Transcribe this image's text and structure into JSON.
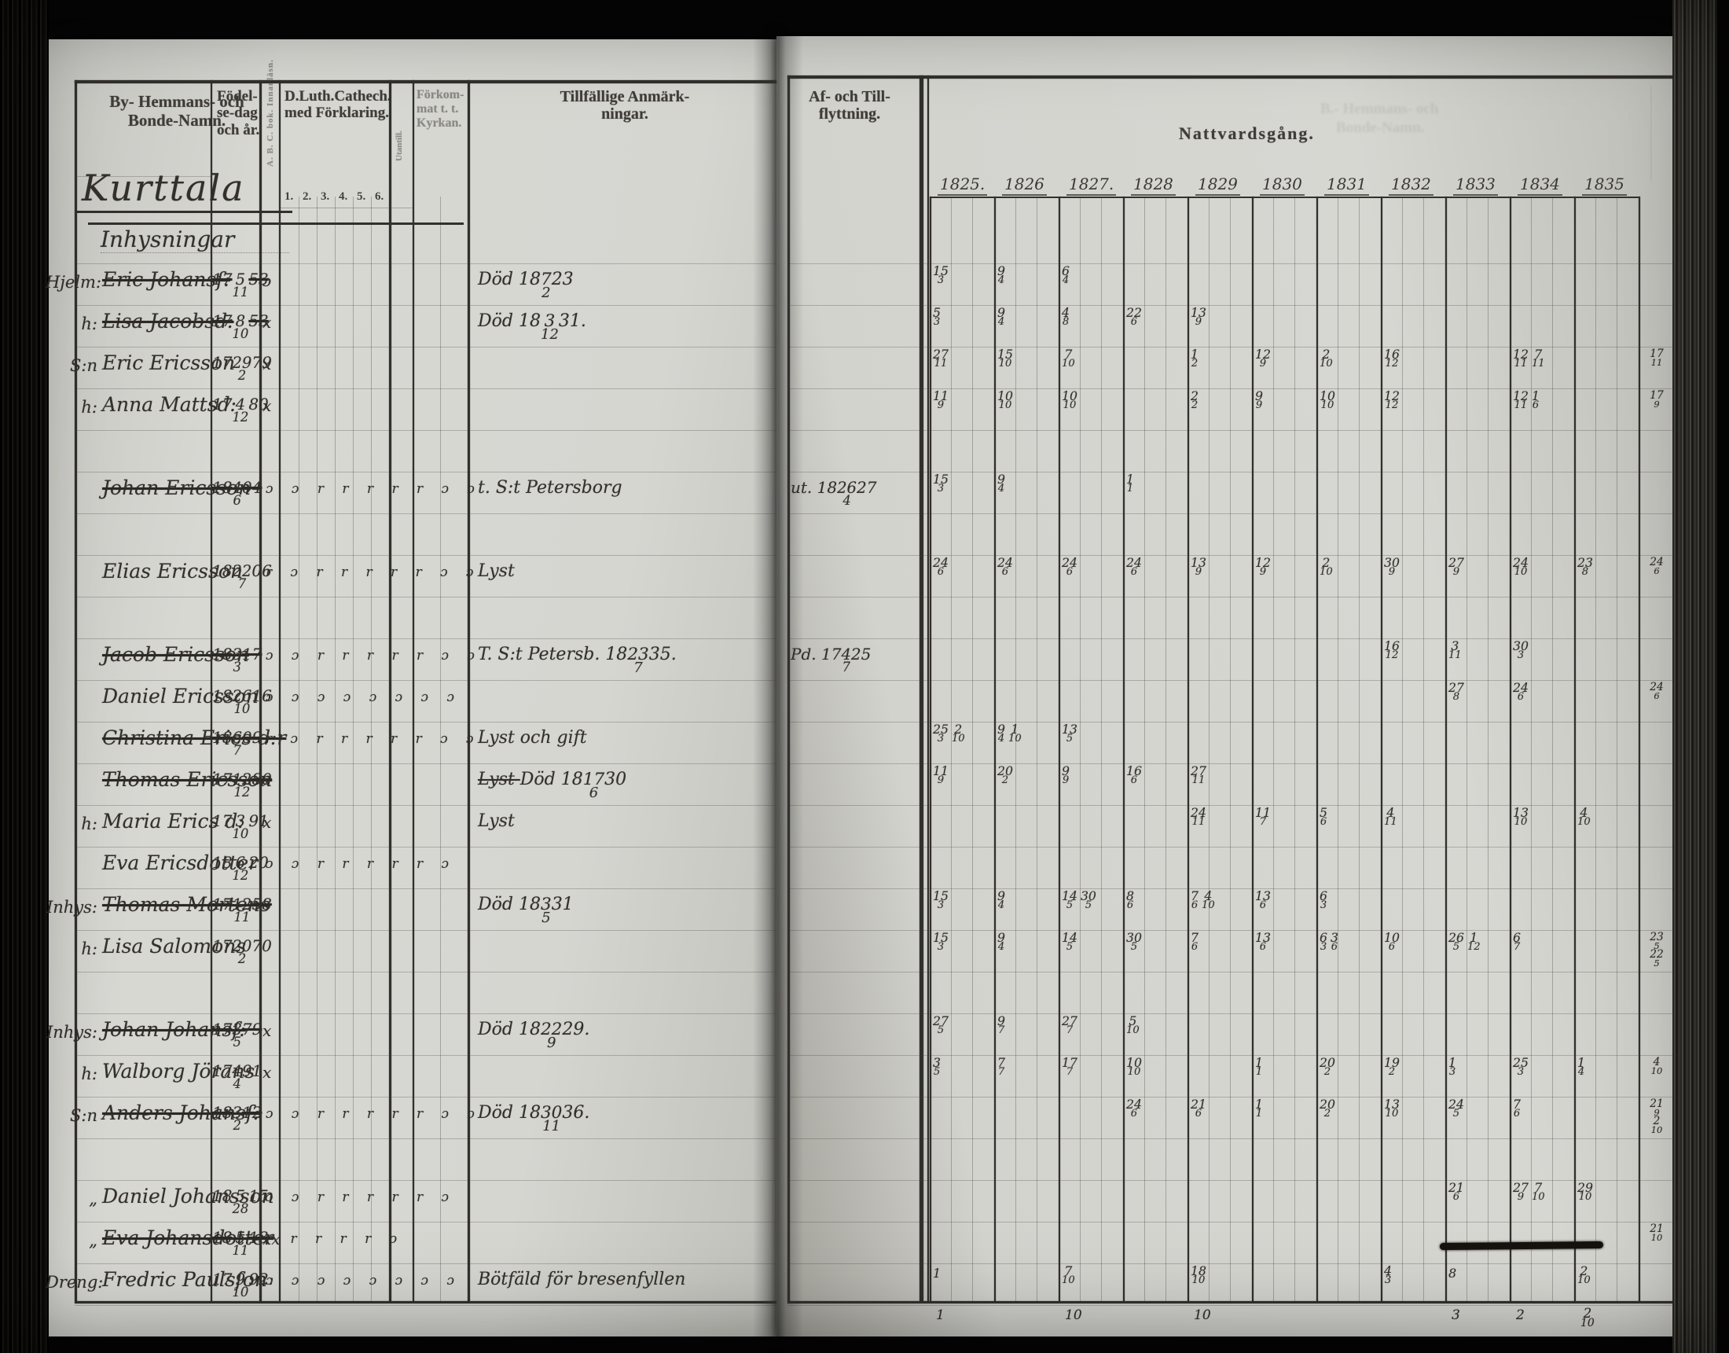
{
  "document": {
    "village_title": "Kurttala",
    "section_label": "Inhysningar",
    "natt_title": "Nattvardsgång.",
    "years": [
      "1825",
      "1826",
      "1827",
      "1828",
      "1829",
      "1830",
      "1831",
      "1832",
      "1833",
      "1834",
      "1835"
    ],
    "year_labels": [
      "1825.",
      "1826",
      "1827.",
      "1828",
      "1829",
      "1830",
      "1831",
      "1832",
      "1833",
      "1834",
      "1835"
    ]
  },
  "headers": {
    "names": [
      "By- Hemmans- och",
      "Bonde-Namn."
    ],
    "birth": [
      "Födel-",
      "se-dag",
      "och år."
    ],
    "abc": "A. B. C. bok. Innanläsn.",
    "cat": [
      "D.Luth.Cathech.",
      "med Förklaring."
    ],
    "cat_nums": [
      "1.",
      "2.",
      "3.",
      "4.",
      "5.",
      "6."
    ],
    "utan": "Utantill.",
    "forhor": [
      "Förkom-",
      "mat t. t.",
      "Kyrkan."
    ],
    "anm": [
      "Tillfällige Anmärk-",
      "ningar."
    ],
    "flytt": [
      "Af- och Till-",
      "flyttning."
    ]
  },
  "ghost_lines": [
    "B.- Hemmans- och",
    "Bonde-Namn."
  ],
  "colors": {
    "ink": "#33302b",
    "paper": "#d6d6d1",
    "shadow": "#0b0a09"
  },
  "rows": [
    {
      "slot": 0,
      "prefix": "Hjelm:",
      "name": "Eric Johansſ:",
      "struck": true,
      "birth": "17{5/11}53",
      "mark": "ɔ",
      "remark": "Död 18{7/2}23",
      "grid": {
        "1825": "{15/3}",
        "1826": "{9/4}",
        "1827": "{6/4}"
      }
    },
    {
      "slot": 1,
      "prefix": "h:",
      "name": "Lisa Jacobsd:",
      "struck": true,
      "birth": "17{8/10}53",
      "mark": "x",
      "remark": "Död 18{3/12}31.",
      "grid": {
        "1825": "{5/3}",
        "1826": "{9/4}",
        "1827": "{4/8}",
        "1828": "{22/6}",
        "1829": "{13/9}"
      }
    },
    {
      "slot": 2,
      "prefix": "S:n",
      "name": "Eric Ericsson",
      "birth": "17{29/2}79",
      "mark": "x",
      "grid": {
        "1825": "{27/11}",
        "1826": "{15/10}",
        "1827": "{7/10}",
        "1829": "{1/2}",
        "1830": "{12/9}",
        "1831": "{2/10}",
        "1832": "{16/12}",
        "1834": "{12/11}{7/11}"
      },
      "margin": "{17/11}"
    },
    {
      "slot": 3,
      "prefix": "h:",
      "name": "Anna Mattsd:",
      "birth": "17{4/12}80",
      "mark": "x",
      "grid": {
        "1825": "{11/9}",
        "1826": "{10/10}",
        "1827": "{10/10}",
        "1829": "{2/2}",
        "1830": "{9/9}",
        "1831": "{10/10}",
        "1832": "{12/12}",
        "1834": "{12/11}{1/6}"
      },
      "margin": "{17/9}"
    },
    {
      "slot": 5,
      "name": "Johan Ericsson",
      "struck": true,
      "birth": "18{4/6}04",
      "reading": "ɔ ɔ r r r r r ɔ ɔ",
      "remark": "t. S:t Petersborg",
      "flytt": "ut. 18{26/4}27",
      "grid": {
        "1825": "{15/3}",
        "1826": "{9/4}",
        "1828": "{1/1}"
      }
    },
    {
      "slot": 7,
      "name": "Elias Ericsson",
      "birth": "18{22/7}06",
      "reading": "r ɔ r r r r r ɔ ɔ",
      "remark": "Lyst",
      "grid": {
        "1825": "{24/6}",
        "1826": "{24/6}",
        "1827": "{24/6}",
        "1828": "{24/6}",
        "1829": "{13/9}",
        "1830": "{12/9}",
        "1831": "{2/10}",
        "1832": "{30/9}",
        "1833": "{27/9}",
        "1834": "{24/10}",
        "1835": "{23/8}"
      },
      "margin": "{24/6}"
    },
    {
      "slot": 9,
      "name": "Jacob Ericsson",
      "struck": true,
      "birth": "18{3/3}17",
      "reading": "ɔ ɔ r r r r r ɔ ɔ",
      "remark": "T. S:t Petersb. 18{23/7}35.",
      "flytt": "Pd. 17{4/7}25",
      "grid": {
        "1832": "{16/12}",
        "1833": "{3/11}",
        "1834": "{30/3}"
      }
    },
    {
      "slot": 10,
      "name": "Daniel Ericsson",
      "birth": "18{26/10}16",
      "reading": "ɔ ɔ ɔ ɔ ɔ ɔ ɔ ɔ",
      "grid": {
        "1833": "{27/8}",
        "1834": "{24/6}"
      },
      "margin": "{24/6}"
    },
    {
      "slot": 11,
      "name": "Christina Erics d:r",
      "struck": true,
      "birth": "18{6/7}09",
      "reading": "r ɔ r r r r r ɔ ɔ",
      "remark": "Lyst och gift",
      "grid": {
        "1825": "{25/3}{2/10}",
        "1826": "{9/4}{1/10}",
        "1827": "{13/5}"
      }
    },
    {
      "slot": 12,
      "name": "Thomas Ericsson",
      "struck": true,
      "birth": "17{12/12}80",
      "mark": "x",
      "remark": "~Lyst~ Död 18{17/6}30",
      "grid": {
        "1825": "{11/9}",
        "1826": "{20/2}",
        "1827": "{9/9}",
        "1828": "{16/6}",
        "1829": "{27/11}"
      }
    },
    {
      "slot": 13,
      "prefix": "h:",
      "name": "Maria Erics d:",
      "birth": "17{3/10}91",
      "mark": "x",
      "remark": "Lyst",
      "grid": {
        "1829": "{24/11}",
        "1830": "{11/7}",
        "1831": "{5/6}",
        "1832": "{4/11}",
        "1834": "{13/10}",
        "1835": "{4/10}"
      }
    },
    {
      "slot": 14,
      "name": "Eva Ericsdotter",
      "birth": "18{6/12}20",
      "reading": "ɔ ɔ r r r r r ɔ"
    },
    {
      "slot": 15,
      "prefix": "Inhys:",
      "name": "Thomas Mortens",
      "struck": true,
      "birth": "17{12/11}58",
      "remark": "Död 18{3/5}31",
      "grid": {
        "1825": "{15/3}",
        "1826": "{9/4}",
        "1827": "{14/5}{30/5}",
        "1828": "{8/6}",
        "1829": "{7/6}{4/10}",
        "1830": "{13/6}",
        "1831": "{6/3}"
      }
    },
    {
      "slot": 16,
      "prefix": "h:",
      "name": "Lisa Salomons",
      "birth": "17{20/2}70",
      "grid": {
        "1825": "{15/3}",
        "1826": "{9/4}",
        "1827": "{14/5}",
        "1828": "{30/5}",
        "1829": "{7/6}",
        "1830": "{13/6}",
        "1831": "{6/3}{3/6}",
        "1832": "{10/6}",
        "1833": "{26/5}{1/12}",
        "1834": "{6/7}"
      },
      "margin": "{23/5} {22/5}"
    },
    {
      "slot": 18,
      "prefix": "Inhys:",
      "name": "Johan Johansſ:",
      "struck": true,
      "birth": "17{3/5}79",
      "mark": "x",
      "remark": "Död 18{22/9}29.",
      "grid": {
        "1825": "{27/5}",
        "1826": "{9/7}",
        "1827": "{27/7}",
        "1828": "{5/10}"
      }
    },
    {
      "slot": 19,
      "prefix": "h:",
      "name": "Walborg Jörans",
      "birth": "17{4/4}91",
      "mark": "x",
      "grid": {
        "1825": "{3/5}",
        "1826": "{7/7}",
        "1827": "{17/7}",
        "1828": "{10/10}",
        "1830": "{1/1}",
        "1831": "{20/2}",
        "1832": "{19/2}",
        "1833": "{1/3}",
        "1834": "{25/3}",
        "1835": "{1/4}"
      },
      "margin": "{4/10}"
    },
    {
      "slot": 20,
      "prefix": "S:n",
      "name": "Anders Johansſ:",
      "struck": true,
      "birth": "18{3/2}12",
      "reading": "ɔ ɔ r r r r r ɔ ɔ",
      "remark": "Död 18{30/11}36.",
      "grid": {
        "1828": "{24/6}",
        "1829": "{21/6}",
        "1830": "{1/1}",
        "1831": "{20/2}",
        "1832": "{13/10}",
        "1833": "{24/5}",
        "1834": "{7/6}"
      },
      "margin": "{21/9} {2/10}"
    },
    {
      "slot": 22,
      "prefix": "„",
      "name": "Daniel Johansson",
      "birth": "18{5/28}15",
      "reading": "ɔ ɔ r r r r r ɔ",
      "grid": {
        "1833": "{21/6}",
        "1834": "{27/9}{7/10}",
        "1835": "{29/10}"
      }
    },
    {
      "slot": 23,
      "prefix": "„",
      "name": "Eva Johansdotter",
      "struck": true,
      "blot": true,
      "birth": "18{5/11}13",
      "mark": "xx",
      "reading": "r r r r r ɔ",
      "margin": "{21/10}"
    },
    {
      "slot": 24,
      "prefix": "Dreng:",
      "name": "Fredric Paulsſon",
      "birth": "17{9/10}92:",
      "reading": "ɔ ɔ ɔ ɔ ɔ ɔ ɔ ɔ",
      "remark": "Bötfäld för bresenfyllen",
      "grid": {
        "1825": "1",
        "1827": "{7/10}",
        "1829": "{18/10}",
        "1832": "{4/3}",
        "1833": "8",
        "1835": "{2/10}"
      }
    }
  ],
  "footer_sums": {
    "1825": "1",
    "1827": "10",
    "1829": "10",
    "1833": "3",
    "1834": "2",
    "1835": "{2/10}"
  }
}
